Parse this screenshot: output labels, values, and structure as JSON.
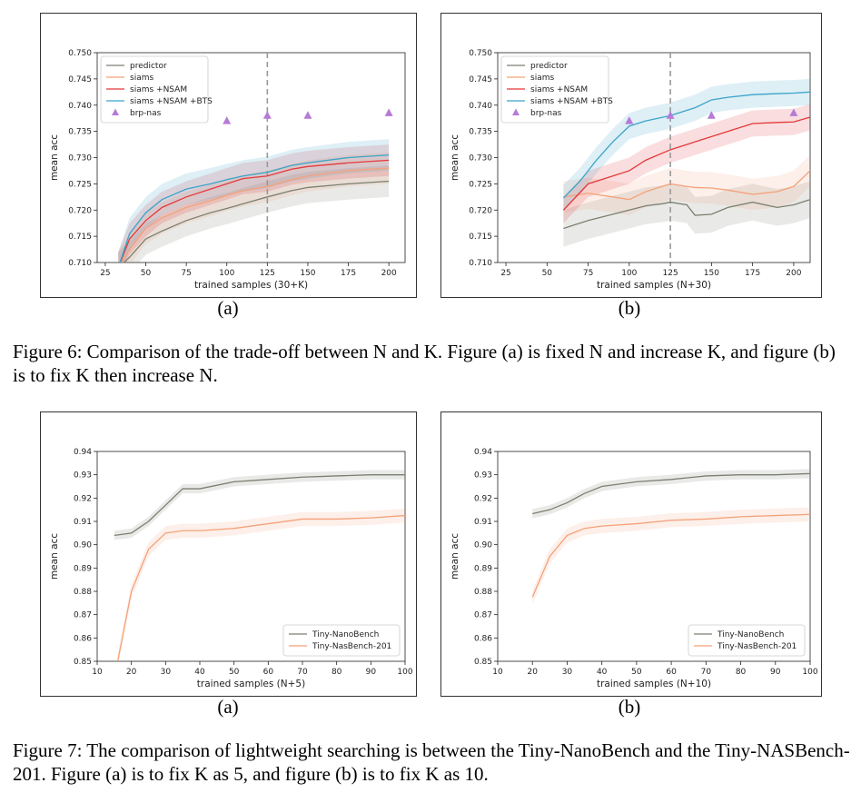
{
  "figure6": {
    "caption_label": "Figure 6:",
    "caption_text": "Comparison of the trade-off between N and K. Figure (a) is fixed N and increase K, and figure (b) is to fix K then increase N.",
    "panels": [
      {
        "label": "(a)"
      },
      {
        "label": "(b)"
      }
    ]
  },
  "figure7": {
    "caption_label": "Figure 7:",
    "caption_text": "The comparison of lightweight searching is between the Tiny-NanoBench and the Tiny-NASBench-201. Figure (a) is to fix K as 5, and figure (b) is to fix K as 10.",
    "panels": [
      {
        "label": "(a)"
      },
      {
        "label": "(b)"
      }
    ]
  },
  "colors": {
    "predictor": "#7a8070",
    "siams": "#f4a27a",
    "nsam": "#e4383a",
    "bts": "#3aa3c8",
    "brp": "#b77ad8",
    "nano": "#7a8070",
    "nas201": "#f4a27a",
    "dashed": "#999999"
  },
  "chart_data": [
    {
      "type": "line",
      "xlabel": "trained samples (30+K)",
      "ylabel": "mean acc",
      "xlim": [
        20,
        210
      ],
      "ylim": [
        0.71,
        0.75
      ],
      "xticks": [
        25,
        50,
        75,
        100,
        125,
        150,
        175,
        200
      ],
      "yticks": [
        0.71,
        0.715,
        0.72,
        0.725,
        0.73,
        0.735,
        0.74,
        0.745,
        0.75
      ],
      "ytick_labels": [
        "0.710",
        "0.715",
        "0.720",
        "0.725",
        "0.730",
        "0.735",
        "0.740",
        "0.745",
        "0.750"
      ],
      "vline": 125,
      "legend": "top-left",
      "series": [
        {
          "name": "predictor",
          "x": [
            33,
            40,
            50,
            60,
            75,
            90,
            100,
            110,
            125,
            140,
            150,
            175,
            200
          ],
          "y": [
            0.709,
            0.711,
            0.7145,
            0.716,
            0.718,
            0.7195,
            0.7203,
            0.7212,
            0.7225,
            0.7237,
            0.7243,
            0.725,
            0.7255
          ],
          "band": 0.003
        },
        {
          "name": "siams",
          "x": [
            33,
            40,
            50,
            60,
            75,
            90,
            100,
            110,
            125,
            140,
            150,
            175,
            200
          ],
          "y": [
            0.709,
            0.7125,
            0.7165,
            0.7185,
            0.7205,
            0.7218,
            0.7228,
            0.7237,
            0.7245,
            0.7258,
            0.7265,
            0.7275,
            0.728
          ],
          "band": 0.003
        },
        {
          "name": "siams +NSAM",
          "x": [
            33,
            40,
            50,
            60,
            75,
            90,
            100,
            110,
            125,
            140,
            150,
            175,
            200
          ],
          "y": [
            0.709,
            0.7145,
            0.718,
            0.7205,
            0.7225,
            0.724,
            0.725,
            0.726,
            0.7265,
            0.7278,
            0.7283,
            0.729,
            0.7295
          ],
          "band": 0.003
        },
        {
          "name": "siams +NSAM +BTS",
          "x": [
            33,
            40,
            50,
            60,
            75,
            90,
            100,
            110,
            125,
            140,
            150,
            175,
            200
          ],
          "y": [
            0.709,
            0.7155,
            0.7195,
            0.722,
            0.724,
            0.725,
            0.7258,
            0.7265,
            0.7272,
            0.7285,
            0.729,
            0.73,
            0.7305
          ],
          "band": 0.003
        }
      ],
      "markers": {
        "name": "brp-nas",
        "x": [
          100,
          125,
          150,
          200
        ],
        "y": [
          0.737,
          0.738,
          0.738,
          0.7385
        ]
      }
    },
    {
      "type": "line",
      "xlabel": "trained samples (N+30)",
      "ylabel": "mean acc",
      "xlim": [
        20,
        210
      ],
      "ylim": [
        0.71,
        0.75
      ],
      "xticks": [
        25,
        50,
        75,
        100,
        125,
        150,
        175,
        200
      ],
      "yticks": [
        0.71,
        0.715,
        0.72,
        0.725,
        0.73,
        0.735,
        0.74,
        0.745,
        0.75
      ],
      "ytick_labels": [
        "0.710",
        "0.715",
        "0.720",
        "0.725",
        "0.730",
        "0.735",
        "0.740",
        "0.745",
        "0.750"
      ],
      "vline": 125,
      "legend": "top-left",
      "series": [
        {
          "name": "predictor",
          "x": [
            60,
            75,
            90,
            100,
            110,
            120,
            125,
            135,
            140,
            150,
            160,
            175,
            190,
            200,
            210
          ],
          "y": [
            0.7165,
            0.718,
            0.7192,
            0.72,
            0.7208,
            0.7212,
            0.7215,
            0.721,
            0.719,
            0.7192,
            0.7205,
            0.7215,
            0.7205,
            0.721,
            0.722
          ],
          "band": 0.0035
        },
        {
          "name": "siams",
          "x": [
            60,
            75,
            90,
            100,
            110,
            120,
            125,
            135,
            140,
            150,
            160,
            175,
            190,
            200,
            210
          ],
          "y": [
            0.7225,
            0.7232,
            0.7225,
            0.722,
            0.7235,
            0.7245,
            0.725,
            0.7245,
            0.7243,
            0.7242,
            0.7238,
            0.723,
            0.7235,
            0.7245,
            0.7275
          ],
          "band": 0.003
        },
        {
          "name": "siams +NSAM",
          "x": [
            60,
            75,
            90,
            100,
            110,
            125,
            140,
            150,
            160,
            175,
            190,
            200,
            210
          ],
          "y": [
            0.72,
            0.725,
            0.7265,
            0.7275,
            0.7295,
            0.7315,
            0.733,
            0.734,
            0.735,
            0.7365,
            0.7367,
            0.7368,
            0.7377
          ],
          "band": 0.0025
        },
        {
          "name": "siams +NSAM +BTS",
          "x": [
            60,
            70,
            80,
            90,
            100,
            110,
            125,
            140,
            150,
            160,
            175,
            190,
            200,
            210
          ],
          "y": [
            0.7223,
            0.7255,
            0.7295,
            0.733,
            0.736,
            0.737,
            0.738,
            0.7395,
            0.741,
            0.7415,
            0.742,
            0.7422,
            0.7423,
            0.7425
          ],
          "band": 0.0025
        }
      ],
      "markers": {
        "name": "brp-nas",
        "x": [
          100,
          125,
          150,
          200
        ],
        "y": [
          0.737,
          0.738,
          0.738,
          0.7385
        ]
      }
    },
    {
      "type": "line",
      "xlabel": "trained samples (N+5)",
      "ylabel": "mean acc",
      "xlim": [
        10,
        100
      ],
      "ylim": [
        0.85,
        0.94
      ],
      "xticks": [
        10,
        20,
        30,
        40,
        50,
        60,
        70,
        80,
        90,
        100
      ],
      "yticks": [
        0.85,
        0.86,
        0.87,
        0.88,
        0.89,
        0.9,
        0.91,
        0.92,
        0.93,
        0.94
      ],
      "ytick_labels": [
        "0.85",
        "0.86",
        "0.87",
        "0.88",
        "0.89",
        "0.90",
        "0.91",
        "0.92",
        "0.93",
        "0.94"
      ],
      "legend": "bottom-right",
      "series": [
        {
          "name": "Tiny-NanoBench",
          "x": [
            15,
            20,
            25,
            30,
            35,
            40,
            50,
            60,
            70,
            80,
            90,
            100
          ],
          "y": [
            0.904,
            0.905,
            0.91,
            0.917,
            0.924,
            0.924,
            0.927,
            0.928,
            0.929,
            0.9295,
            0.93,
            0.93
          ],
          "band": 0.002
        },
        {
          "name": "Tiny-NasBench-201",
          "x": [
            16,
            20,
            25,
            30,
            35,
            40,
            50,
            60,
            70,
            80,
            90,
            100
          ],
          "y": [
            0.85,
            0.88,
            0.898,
            0.905,
            0.906,
            0.906,
            0.907,
            0.909,
            0.911,
            0.911,
            0.9115,
            0.9125
          ],
          "band": 0.003
        }
      ]
    },
    {
      "type": "line",
      "xlabel": "trained samples (N+10)",
      "ylabel": "mean acc",
      "xlim": [
        10,
        100
      ],
      "ylim": [
        0.85,
        0.94
      ],
      "xticks": [
        10,
        20,
        30,
        40,
        50,
        60,
        70,
        80,
        90,
        100
      ],
      "yticks": [
        0.85,
        0.86,
        0.87,
        0.88,
        0.89,
        0.9,
        0.91,
        0.92,
        0.93,
        0.94
      ],
      "ytick_labels": [
        "0.85",
        "0.86",
        "0.87",
        "0.88",
        "0.89",
        "0.90",
        "0.91",
        "0.92",
        "0.93",
        "0.94"
      ],
      "legend": "bottom-right",
      "series": [
        {
          "name": "Tiny-NanoBench",
          "x": [
            20,
            25,
            30,
            35,
            40,
            50,
            60,
            70,
            80,
            90,
            100
          ],
          "y": [
            0.9133,
            0.915,
            0.918,
            0.922,
            0.925,
            0.927,
            0.928,
            0.9295,
            0.93,
            0.93,
            0.9305
          ],
          "band": 0.002
        },
        {
          "name": "Tiny-NasBench-201",
          "x": [
            20,
            25,
            30,
            35,
            40,
            50,
            60,
            70,
            80,
            90,
            100
          ],
          "y": [
            0.8775,
            0.895,
            0.904,
            0.907,
            0.908,
            0.909,
            0.9105,
            0.911,
            0.912,
            0.9125,
            0.913
          ],
          "band": 0.003
        }
      ]
    }
  ]
}
